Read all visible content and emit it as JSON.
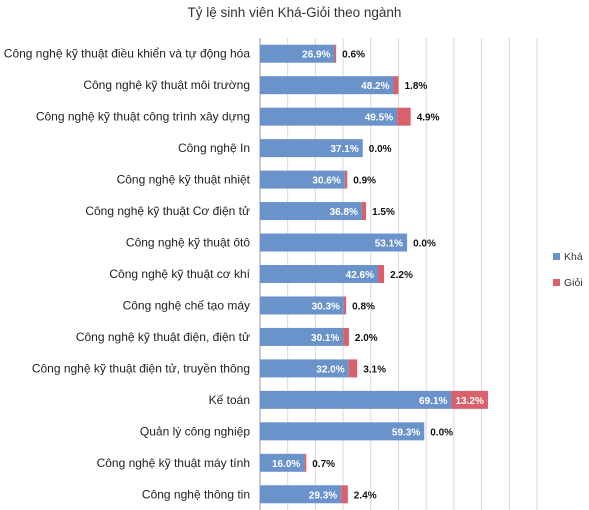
{
  "chart_data": {
    "type": "bar",
    "orientation": "horizontal",
    "stacked": true,
    "title": "Tỷ lệ sinh viên Khá-Giỏi theo ngành",
    "categories": [
      "Công nghệ kỹ thuật điều khiển và tự động hóa",
      "Công nghệ kỹ thuật môi trường",
      "Công nghệ kỹ thuật công trình xây dựng",
      "Công nghệ In",
      "Công nghệ kỹ thuật nhiệt",
      "Công nghệ kỹ thuật Cơ điện tử",
      "Công nghệ kỹ thuật ôtô",
      "Công nghệ kỹ thuật cơ khí",
      "Công nghệ chế tạo máy",
      "Công nghệ kỹ thuật điện, điện tử",
      "Công nghệ kỹ thuật điện tử, truyền thông",
      "Kế toán",
      "Quản lý công nghiệp",
      "Công nghệ kỹ thuật máy tính",
      "Công nghệ thông tin"
    ],
    "series": [
      {
        "name": "Khá",
        "color": "#6a93cc",
        "values": [
          26.9,
          48.2,
          49.5,
          37.1,
          30.6,
          36.8,
          53.1,
          42.6,
          30.3,
          30.1,
          32.0,
          69.1,
          59.3,
          16.0,
          29.3
        ],
        "labels": [
          "26.9%",
          "48.2%",
          "49.5%",
          "37.1%",
          "30.6%",
          "36.8%",
          "53.1%",
          "42.6%",
          "30.3%",
          "30.1%",
          "32.0%",
          "69.1%",
          "59.3%",
          "16.0%",
          "29.3%"
        ]
      },
      {
        "name": "Giỏi",
        "color": "#d9616a",
        "values": [
          0.6,
          1.8,
          4.9,
          0.0,
          0.9,
          1.5,
          0.0,
          2.2,
          0.8,
          2.0,
          3.1,
          13.2,
          0.0,
          0.7,
          2.4
        ],
        "labels": [
          "0.6%",
          "1.8%",
          "4.9%",
          "0.0%",
          "0.9%",
          "1.5%",
          "0.0%",
          "2.2%",
          "0.8%",
          "2.0%",
          "3.1%",
          "13.2%",
          "0.0%",
          "0.7%",
          "2.4%"
        ]
      }
    ],
    "xlim": [
      0,
      100
    ],
    "grid": true,
    "legend_position": "right"
  }
}
